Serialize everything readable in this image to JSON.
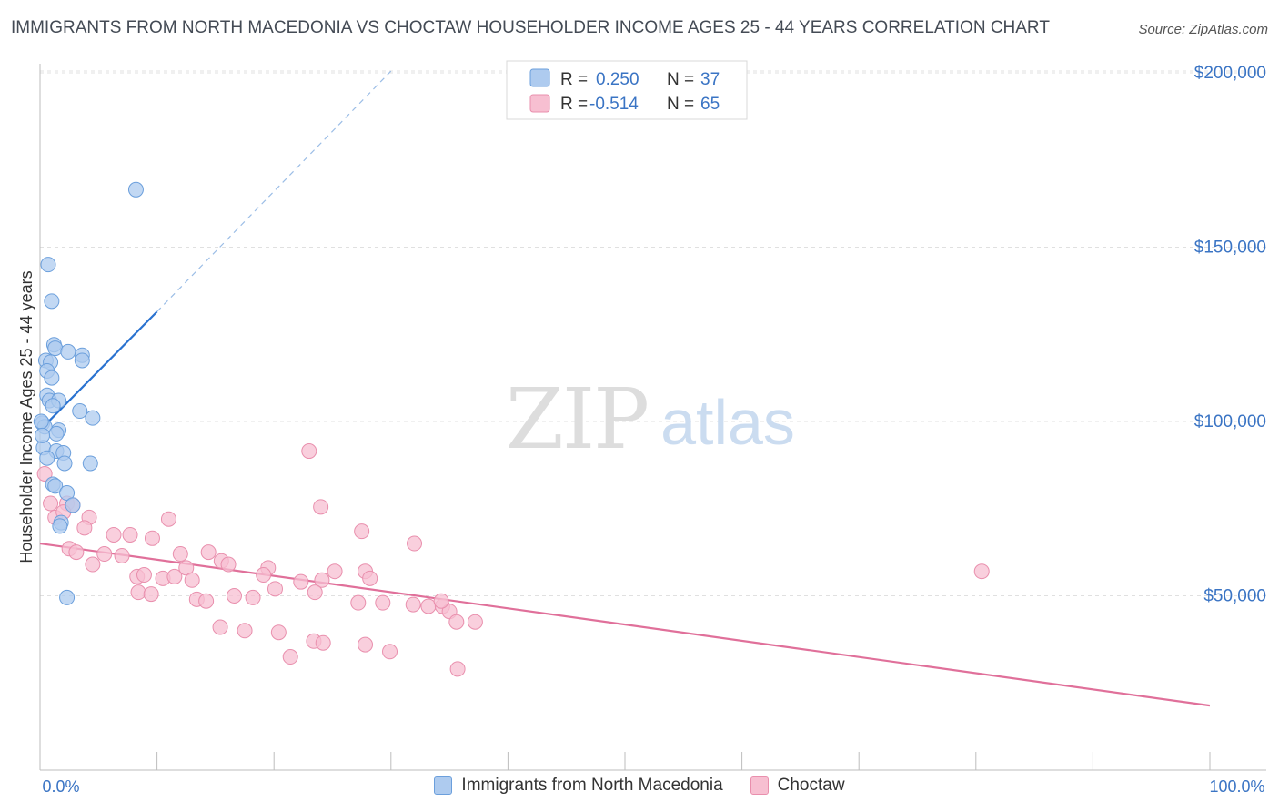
{
  "header": {
    "title": "IMMIGRANTS FROM NORTH MACEDONIA VS CHOCTAW HOUSEHOLDER INCOME AGES 25 - 44 YEARS CORRELATION CHART",
    "source": "Source: ZipAtlas.com"
  },
  "watermark": {
    "zip": "ZIP",
    "atlas": "atlas"
  },
  "legend": {
    "series1": {
      "r_label": "R = ",
      "r_value": "0.250",
      "n_label": "N = ",
      "n_value": "37"
    },
    "series2": {
      "r_label": "R = ",
      "r_value": "-0.514",
      "n_label": "N = ",
      "n_value": "65"
    }
  },
  "colors": {
    "blue_fill": "#aecbef",
    "blue_stroke": "#6b9fdc",
    "blue_line": "#2a72d0",
    "pink_fill": "#f7bfd1",
    "pink_stroke": "#e98fad",
    "pink_line": "#e0709a",
    "value_text": "#3a74c4",
    "grid": "#e0e0e0"
  },
  "chart_data": {
    "type": "scatter",
    "title": "IMMIGRANTS FROM NORTH MACEDONIA VS CHOCTAW HOUSEHOLDER INCOME AGES 25 - 44 YEARS CORRELATION CHART",
    "xlabel": "",
    "ylabel": "Householder Income Ages 25 - 44 years",
    "xlim": [
      0,
      100
    ],
    "ylim": [
      0,
      205000
    ],
    "x_tick_labels": [
      "0.0%",
      "100.0%"
    ],
    "y_ticks": [
      50000,
      100000,
      150000,
      200000
    ],
    "y_tick_labels": [
      "$50,000",
      "$100,000",
      "$150,000",
      "$200,000"
    ],
    "grid": true,
    "series": [
      {
        "name": "Immigrants from North Macedonia",
        "color": "blue",
        "r": 0.25,
        "n": 37,
        "trendline": {
          "x0": 0.0,
          "y0": 97500,
          "x1": 10.0,
          "y1": 131500,
          "dashed_to_x": 30.0,
          "dashed_to_y": 200500
        },
        "points": [
          [
            8.2,
            166500
          ],
          [
            0.7,
            145000
          ],
          [
            1.0,
            134500
          ],
          [
            1.2,
            122000
          ],
          [
            1.3,
            121000
          ],
          [
            2.4,
            120000
          ],
          [
            3.6,
            119000
          ],
          [
            3.6,
            117500
          ],
          [
            0.5,
            117500
          ],
          [
            0.9,
            117000
          ],
          [
            0.6,
            114500
          ],
          [
            1.0,
            112500
          ],
          [
            0.6,
            107500
          ],
          [
            0.8,
            106000
          ],
          [
            1.6,
            106000
          ],
          [
            1.1,
            104500
          ],
          [
            3.4,
            103000
          ],
          [
            4.5,
            101000
          ],
          [
            0.2,
            99500
          ],
          [
            0.4,
            98500
          ],
          [
            1.6,
            97500
          ],
          [
            1.4,
            96500
          ],
          [
            0.3,
            92500
          ],
          [
            1.4,
            91500
          ],
          [
            2.0,
            91000
          ],
          [
            0.6,
            89500
          ],
          [
            2.1,
            88000
          ],
          [
            4.3,
            88000
          ],
          [
            1.1,
            82000
          ],
          [
            1.3,
            81500
          ],
          [
            2.3,
            79500
          ],
          [
            2.8,
            76000
          ],
          [
            1.8,
            71000
          ],
          [
            1.7,
            70000
          ],
          [
            2.3,
            49500
          ],
          [
            0.1,
            100000
          ],
          [
            0.2,
            96000
          ]
        ]
      },
      {
        "name": "Choctaw",
        "color": "pink",
        "r": -0.514,
        "n": 65,
        "trendline": {
          "x0": 0.0,
          "y0": 65000,
          "x1": 100.0,
          "y1": 18500
        },
        "points": [
          [
            0.4,
            85000
          ],
          [
            0.9,
            76500
          ],
          [
            2.3,
            76500
          ],
          [
            2.8,
            76000
          ],
          [
            1.3,
            72500
          ],
          [
            2.0,
            74000
          ],
          [
            4.2,
            72500
          ],
          [
            3.8,
            69500
          ],
          [
            11.0,
            72000
          ],
          [
            6.3,
            67500
          ],
          [
            7.7,
            67500
          ],
          [
            9.6,
            66500
          ],
          [
            2.5,
            63500
          ],
          [
            3.1,
            62500
          ],
          [
            5.5,
            62000
          ],
          [
            7.0,
            61500
          ],
          [
            12.0,
            62000
          ],
          [
            14.4,
            62500
          ],
          [
            4.5,
            59000
          ],
          [
            15.5,
            60000
          ],
          [
            16.1,
            59000
          ],
          [
            12.5,
            58000
          ],
          [
            19.5,
            58000
          ],
          [
            25.2,
            57000
          ],
          [
            27.8,
            57000
          ],
          [
            8.3,
            55500
          ],
          [
            8.9,
            56000
          ],
          [
            10.5,
            55000
          ],
          [
            11.5,
            55500
          ],
          [
            13.0,
            54500
          ],
          [
            19.1,
            56000
          ],
          [
            22.3,
            54000
          ],
          [
            24.1,
            54500
          ],
          [
            28.2,
            55000
          ],
          [
            8.4,
            51000
          ],
          [
            9.5,
            50500
          ],
          [
            13.4,
            49000
          ],
          [
            14.2,
            48500
          ],
          [
            16.6,
            50000
          ],
          [
            18.2,
            49500
          ],
          [
            20.1,
            52000
          ],
          [
            23.5,
            51000
          ],
          [
            27.2,
            48000
          ],
          [
            29.3,
            48000
          ],
          [
            31.9,
            47500
          ],
          [
            33.2,
            47000
          ],
          [
            34.4,
            47000
          ],
          [
            35.0,
            45500
          ],
          [
            15.4,
            41000
          ],
          [
            17.5,
            40000
          ],
          [
            20.4,
            39500
          ],
          [
            34.3,
            48500
          ],
          [
            37.2,
            42500
          ],
          [
            35.6,
            42500
          ],
          [
            23.4,
            37000
          ],
          [
            24.2,
            36500
          ],
          [
            27.8,
            36000
          ],
          [
            29.9,
            34000
          ],
          [
            35.7,
            29000
          ],
          [
            21.4,
            32500
          ],
          [
            23.0,
            91500
          ],
          [
            24.0,
            75500
          ],
          [
            27.5,
            68500
          ],
          [
            32.0,
            65000
          ],
          [
            80.5,
            57000
          ]
        ]
      }
    ]
  },
  "bottom_legend": {
    "item1": "Immigrants from North Macedonia",
    "item2": "Choctaw"
  }
}
